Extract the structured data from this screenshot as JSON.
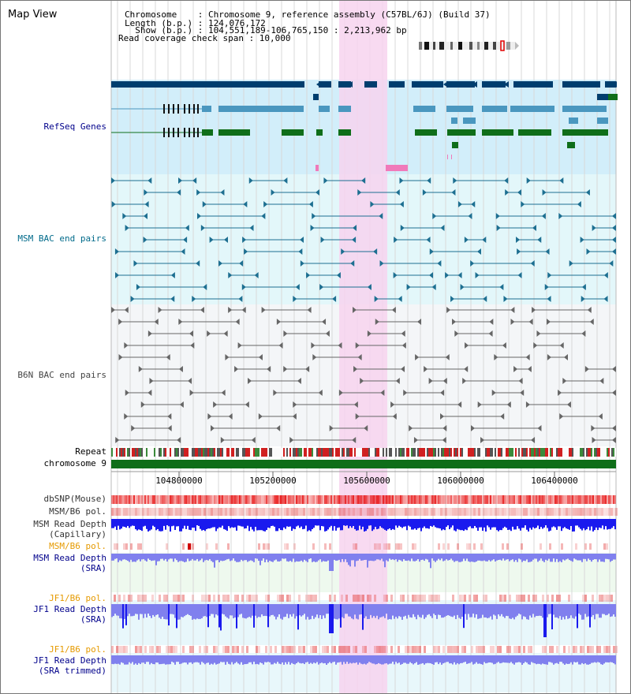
{
  "title": "Map View",
  "header": {
    "chromosome_line": "Chromosome    : Chromosome 9, reference assembly (C57BL/6J) (Build 37)",
    "length_line": "Length (b.p.) : 124,076,172",
    "show_line": "  Show (b.p.) : 104,551,189-106,765,150 : 2,213,962 bp",
    "coverage_line": "Read coverage check span : 10,000"
  },
  "tracks": [
    {
      "id": "refseq",
      "label": "RefSeq Genes",
      "color": "#00008b"
    },
    {
      "id": "msm_bac",
      "label": "MSM BAC end pairs",
      "color": "#006a8a"
    },
    {
      "id": "b6n_bac",
      "label": "B6N BAC end pairs",
      "color": "#444444"
    },
    {
      "id": "repeat",
      "label": "Repeat",
      "color": "#000000"
    },
    {
      "id": "chromosome",
      "label": "chromosome 9",
      "color": "#000000"
    },
    {
      "id": "dbsnp",
      "label": "dbSNP(Mouse)",
      "color": "#333333"
    },
    {
      "id": "msm_pol_cap",
      "label": "MSM/B6 pol.",
      "color": "#333333"
    },
    {
      "id": "msm_depth_cap_1",
      "label": "MSM Read Depth",
      "color": "#333333"
    },
    {
      "id": "msm_depth_cap_2",
      "label": "(Capillary)",
      "color": "#333333"
    },
    {
      "id": "msm_pol_sra",
      "label": "MSM/B6 pol.",
      "color": "#e69a00"
    },
    {
      "id": "msm_depth_sra_1",
      "label": "MSM Read Depth",
      "color": "#00008b"
    },
    {
      "id": "msm_depth_sra_2",
      "label": "(SRA)",
      "color": "#00008b"
    },
    {
      "id": "jf1_pol",
      "label": "JF1/B6 pol.",
      "color": "#e69a00"
    },
    {
      "id": "jf1_depth_1",
      "label": "JF1 Read Depth",
      "color": "#00008b"
    },
    {
      "id": "jf1_depth_2",
      "label": "(SRA)",
      "color": "#00008b"
    },
    {
      "id": "jf1_pol_trim",
      "label": "JF1/B6 pol.",
      "color": "#e69a00"
    },
    {
      "id": "jf1_trim_1",
      "label": "JF1 Read Depth",
      "color": "#00008b"
    },
    {
      "id": "jf1_trim_2",
      "label": "(SRA trimmed)",
      "color": "#00008b"
    }
  ],
  "axis": {
    "ticks": [
      "104800000",
      "105200000",
      "105600000",
      "106000000",
      "106400000"
    ]
  },
  "colors": {
    "highlight": "#f7d3ee",
    "refseq_bg": "#d2eefa",
    "msm_bg": "#e3f7fa",
    "b6n_bg": "#f4f6f8",
    "gene_navy": "#003e6e",
    "gene_teal": "#4a97bf",
    "gene_green": "#0f6e19",
    "chromosome": "#0f6e19",
    "depth_blue": "#1a1aee",
    "depth_light": "#8080ee"
  }
}
